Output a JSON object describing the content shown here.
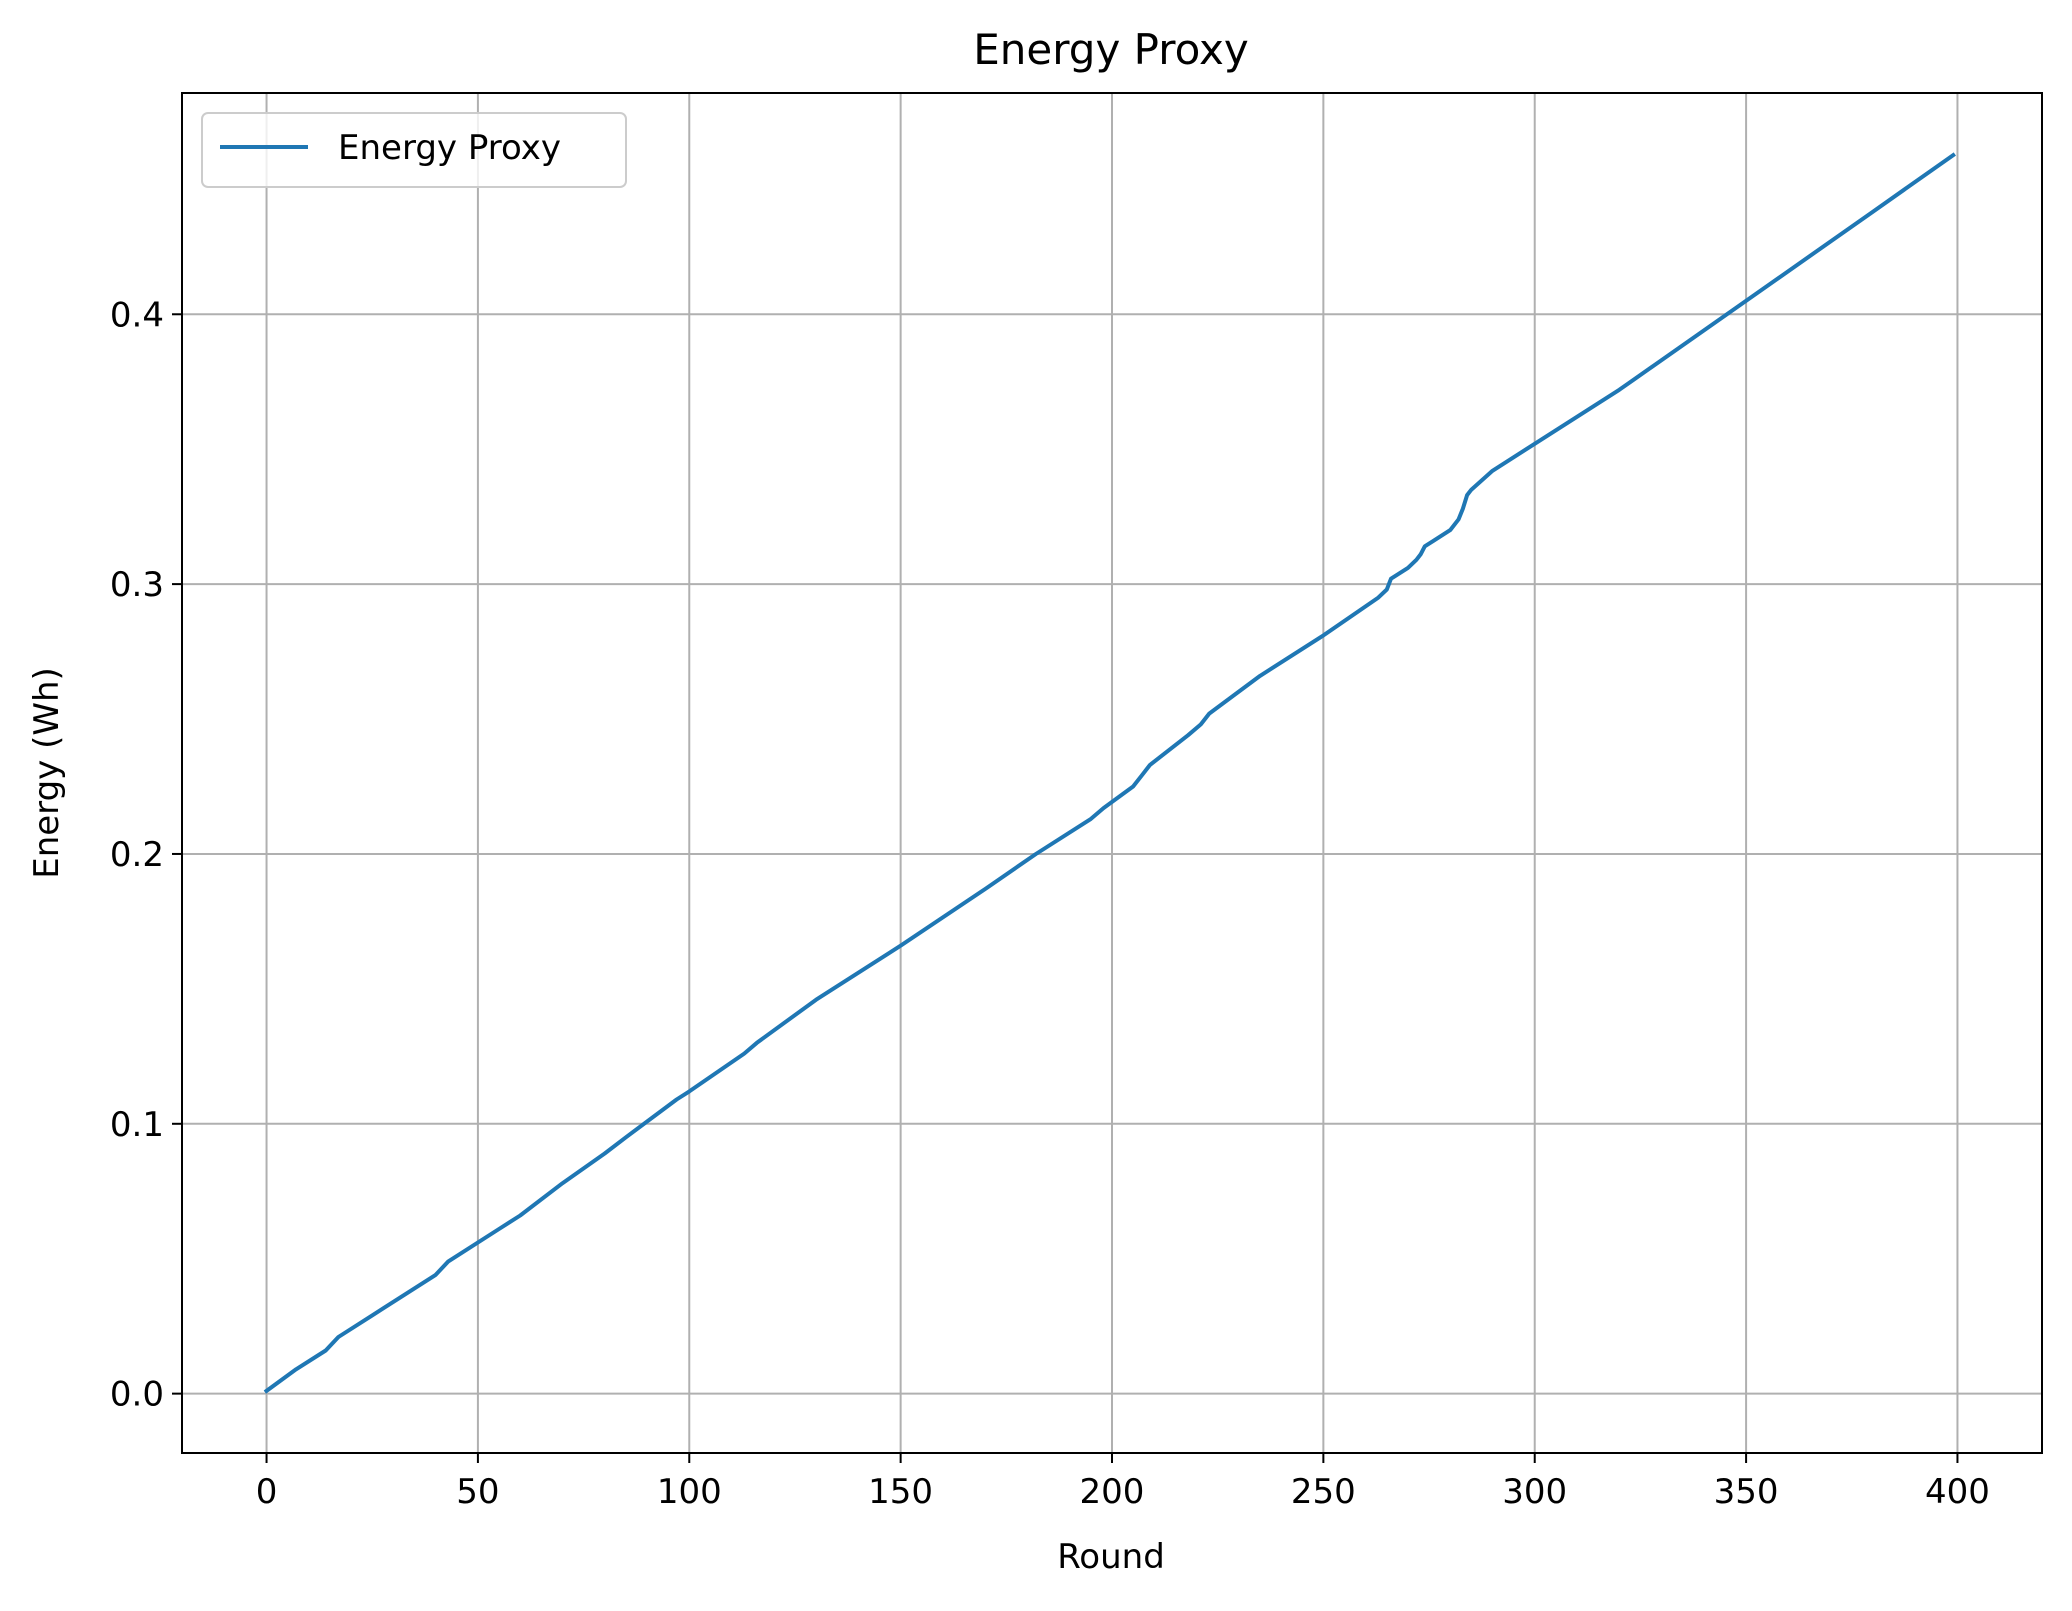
{
  "chart_data": {
    "type": "line",
    "title": "Energy Proxy",
    "xlabel": "Round",
    "ylabel": "Energy (Wh)",
    "xlim": [
      -20,
      420
    ],
    "ylim": [
      -0.022,
      0.482
    ],
    "xticks": [
      0,
      50,
      100,
      150,
      200,
      250,
      300,
      350,
      400
    ],
    "xtick_labels": [
      "0",
      "50",
      "100",
      "150",
      "200",
      "250",
      "300",
      "350",
      "400"
    ],
    "yticks": [
      0.0,
      0.1,
      0.2,
      0.3,
      0.4
    ],
    "ytick_labels": [
      "0.0",
      "0.1",
      "0.2",
      "0.3",
      "0.4"
    ],
    "grid": true,
    "legend_position": "top-left",
    "series": [
      {
        "name": "Energy Proxy",
        "color": "#1f77b4",
        "x": [
          0,
          7,
          14,
          17,
          25,
          40,
          43,
          55,
          60,
          70,
          80,
          85,
          97,
          100,
          113,
          116,
          130,
          150,
          170,
          182,
          195,
          198,
          205,
          207,
          209,
          218,
          221,
          223,
          235,
          250,
          263,
          265,
          266,
          270,
          272,
          273,
          274,
          276,
          280,
          282,
          283,
          284,
          285,
          290,
          300,
          320,
          340,
          360,
          380,
          399
        ],
        "y": [
          0.001,
          0.009,
          0.016,
          0.021,
          0.029,
          0.044,
          0.049,
          0.061,
          0.066,
          0.078,
          0.089,
          0.095,
          0.109,
          0.112,
          0.126,
          0.13,
          0.146,
          0.166,
          0.187,
          0.2,
          0.213,
          0.217,
          0.225,
          0.229,
          0.233,
          0.244,
          0.248,
          0.252,
          0.266,
          0.281,
          0.295,
          0.298,
          0.302,
          0.306,
          0.309,
          0.311,
          0.314,
          0.316,
          0.32,
          0.324,
          0.328,
          0.333,
          0.335,
          0.342,
          0.352,
          0.372,
          0.394,
          0.416,
          0.438,
          0.459
        ]
      }
    ]
  }
}
